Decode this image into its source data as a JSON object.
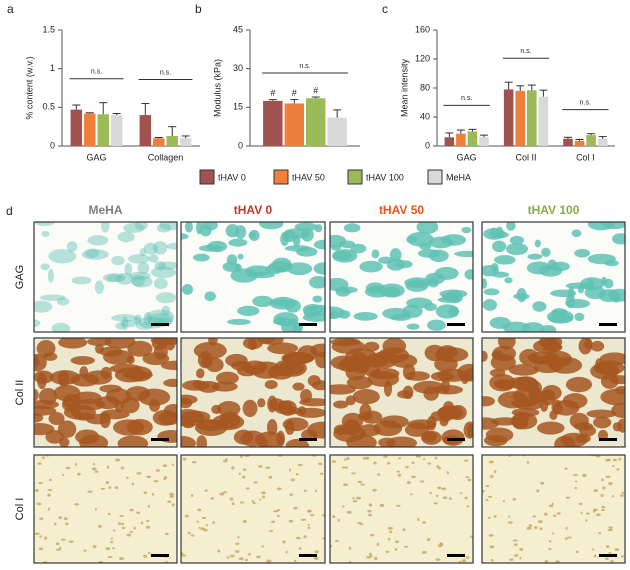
{
  "chart_data": [
    {
      "type": "bar",
      "panel_label": "a",
      "y_label": "% content (w.v.)",
      "categories": [
        "GAG",
        "Collagen"
      ],
      "series": [
        {
          "name": "tHAV 0",
          "color": "#a0524f",
          "values": [
            0.47,
            0.4
          ],
          "errors": [
            0.06,
            0.15
          ]
        },
        {
          "name": "tHAV 50",
          "color": "#f07f3c",
          "values": [
            0.42,
            0.1
          ],
          "errors": [
            0.01,
            0.01
          ]
        },
        {
          "name": "tHAV 100",
          "color": "#9bbb59",
          "values": [
            0.41,
            0.13
          ],
          "errors": [
            0.15,
            0.12
          ]
        },
        {
          "name": "MeHA",
          "color": "#d9d9d9",
          "values": [
            0.4,
            0.1
          ],
          "errors": [
            0.02,
            0.03
          ]
        }
      ],
      "annotations": [
        "n.s.",
        "n.s."
      ],
      "ylim": [
        0,
        1.5
      ],
      "yticks": [
        0,
        0.5,
        1,
        1.5
      ]
    },
    {
      "type": "bar",
      "panel_label": "b",
      "y_label": "Modulus (kPa)",
      "categories": [
        null
      ],
      "series": [
        {
          "color": "#a0524f",
          "values": [
            17.5
          ],
          "errors": [
            0.5
          ],
          "flag": "#"
        },
        {
          "color": "#f07f3c",
          "values": [
            16.5
          ],
          "errors": [
            1.5
          ],
          "flag": "#"
        },
        {
          "color": "#9bbb59",
          "values": [
            18.5
          ],
          "errors": [
            0.5
          ],
          "flag": "#"
        },
        {
          "color": "#d9d9d9",
          "values": [
            11
          ],
          "errors": [
            3
          ]
        }
      ],
      "annotations": [
        "n.s."
      ],
      "ylim": [
        0,
        45
      ],
      "yticks": [
        0,
        15,
        30,
        45
      ]
    },
    {
      "type": "bar",
      "panel_label": "c",
      "y_label": "Mean intensity",
      "categories": [
        "GAG",
        "Col II",
        "Col I"
      ],
      "series": [
        {
          "color": "#a0524f",
          "values": [
            12,
            78,
            10
          ],
          "errors": [
            6,
            10,
            2
          ]
        },
        {
          "color": "#f07f3c",
          "values": [
            17,
            76,
            7
          ],
          "errors": [
            5,
            7,
            2
          ]
        },
        {
          "color": "#9bbb59",
          "values": [
            20,
            77,
            15
          ],
          "errors": [
            3,
            7,
            2
          ]
        },
        {
          "color": "#d9d9d9",
          "values": [
            12,
            68,
            10
          ],
          "errors": [
            3,
            9,
            3
          ]
        }
      ],
      "annotations": [
        "n.s.",
        "n.s.",
        "n.s."
      ],
      "ylim": [
        0,
        160
      ],
      "yticks": [
        0,
        40,
        80,
        120,
        160
      ]
    }
  ],
  "panel_d": {
    "label": "d",
    "columns": [
      {
        "text": "MeHA",
        "color": "#7f7f7f"
      },
      {
        "text": "tHAV 0",
        "color": "#c0392b"
      },
      {
        "text": "tHAV 50",
        "color": "#e8541e"
      },
      {
        "text": "tHAV 100",
        "color": "#8aaa4a"
      }
    ],
    "rows": [
      "GAG",
      "Col II",
      "Col I"
    ]
  }
}
